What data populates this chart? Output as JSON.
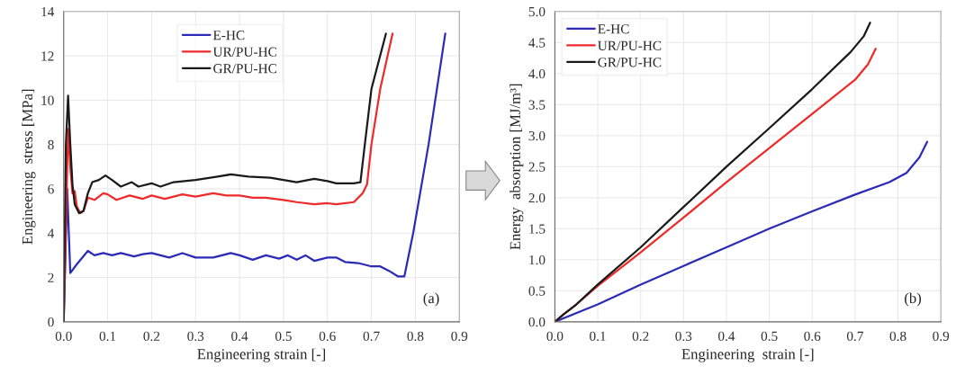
{
  "chart_data": [
    {
      "type": "line",
      "xlabel": "Engineering strain [-]",
      "ylabel": "Engineering  stress [MPa]",
      "xlim": [
        0,
        0.9
      ],
      "ylim": [
        0,
        14
      ],
      "xticks": [
        {
          "value": 0,
          "label": "0.0"
        },
        {
          "value": 0.1,
          "label": "0.1"
        },
        {
          "value": 0.2,
          "label": "0.2"
        },
        {
          "value": 0.3,
          "label": "0.3"
        },
        {
          "value": 0.4,
          "label": "0.4"
        },
        {
          "value": 0.5,
          "label": "0.5"
        },
        {
          "value": 0.6,
          "label": "0.6"
        },
        {
          "value": 0.7,
          "label": "0.7"
        },
        {
          "value": 0.8,
          "label": "0.8"
        },
        {
          "value": 0.9,
          "label": "0.9"
        }
      ],
      "yticks": [
        0,
        2,
        4,
        6,
        8,
        10,
        12,
        14
      ],
      "grid": true,
      "legend": "top",
      "annotations": [
        "(a)"
      ],
      "series": [
        {
          "name": "E-HC",
          "color": "#2b2bb8",
          "x": [
            0,
            0.008,
            0.015,
            0.03,
            0.055,
            0.07,
            0.09,
            0.11,
            0.13,
            0.16,
            0.18,
            0.2,
            0.24,
            0.27,
            0.3,
            0.34,
            0.38,
            0.4,
            0.43,
            0.46,
            0.49,
            0.51,
            0.53,
            0.55,
            0.57,
            0.6,
            0.62,
            0.64,
            0.67,
            0.7,
            0.72,
            0.74,
            0.76,
            0.775,
            0.795,
            0.83,
            0.868
          ],
          "values": [
            0,
            6,
            2.2,
            2.6,
            3.2,
            3.0,
            3.1,
            3.0,
            3.1,
            2.95,
            3.05,
            3.1,
            2.9,
            3.1,
            2.9,
            2.9,
            3.1,
            3.0,
            2.8,
            3.0,
            2.85,
            3.0,
            2.8,
            3.0,
            2.75,
            2.9,
            2.9,
            2.7,
            2.65,
            2.5,
            2.5,
            2.3,
            2.05,
            2.05,
            4,
            8,
            13
          ]
        },
        {
          "name": "UR/PU-HC",
          "color": "#ee2a2a",
          "x": [
            0,
            0.01,
            0.015,
            0.02,
            0.025,
            0.03,
            0.038,
            0.045,
            0.055,
            0.07,
            0.09,
            0.1,
            0.12,
            0.15,
            0.18,
            0.2,
            0.23,
            0.27,
            0.3,
            0.34,
            0.37,
            0.4,
            0.43,
            0.46,
            0.5,
            0.53,
            0.57,
            0.6,
            0.62,
            0.66,
            0.68,
            0.69,
            0.7,
            0.72,
            0.748
          ],
          "values": [
            0,
            8.7,
            7,
            5.8,
            5.9,
            5.2,
            4.9,
            5.0,
            5.6,
            5.5,
            5.8,
            5.75,
            5.5,
            5.7,
            5.55,
            5.7,
            5.55,
            5.75,
            5.65,
            5.8,
            5.7,
            5.7,
            5.6,
            5.6,
            5.5,
            5.4,
            5.3,
            5.35,
            5.3,
            5.4,
            5.8,
            6.2,
            8,
            10.5,
            13
          ]
        },
        {
          "name": "GR/PU-HC",
          "color": "#1a1a1a",
          "x": [
            0,
            0.005,
            0.01,
            0.015,
            0.02,
            0.025,
            0.035,
            0.045,
            0.055,
            0.065,
            0.08,
            0.095,
            0.11,
            0.13,
            0.155,
            0.17,
            0.2,
            0.22,
            0.25,
            0.3,
            0.35,
            0.38,
            0.42,
            0.47,
            0.5,
            0.53,
            0.57,
            0.6,
            0.62,
            0.66,
            0.675,
            0.685,
            0.7,
            0.733
          ],
          "values": [
            0,
            8,
            10.2,
            8,
            6.2,
            5.3,
            4.9,
            5.0,
            5.8,
            6.3,
            6.4,
            6.6,
            6.4,
            6.1,
            6.3,
            6.1,
            6.25,
            6.1,
            6.3,
            6.4,
            6.55,
            6.65,
            6.55,
            6.5,
            6.4,
            6.3,
            6.45,
            6.35,
            6.25,
            6.25,
            6.3,
            8,
            10.5,
            13
          ]
        }
      ]
    },
    {
      "type": "line",
      "xlabel": "Engineering  strain [-]",
      "ylabel": "Energy  absorption [MJ/m³]",
      "xlim": [
        0,
        0.9
      ],
      "ylim": [
        0,
        5
      ],
      "xticks": [
        {
          "value": 0,
          "label": "0.0"
        },
        {
          "value": 0.1,
          "label": "0.1"
        },
        {
          "value": 0.2,
          "label": "0.2"
        },
        {
          "value": 0.3,
          "label": "0.3"
        },
        {
          "value": 0.4,
          "label": "0.4"
        },
        {
          "value": 0.5,
          "label": "0.5"
        },
        {
          "value": 0.6,
          "label": "0.6"
        },
        {
          "value": 0.7,
          "label": "0.7"
        },
        {
          "value": 0.8,
          "label": "0.8"
        },
        {
          "value": 0.9,
          "label": "0.9"
        }
      ],
      "yticks": [
        {
          "value": 0,
          "label": "0.0"
        },
        {
          "value": 0.5,
          "label": "0.5"
        },
        {
          "value": 1,
          "label": "1.0"
        },
        {
          "value": 1.5,
          "label": "1.5"
        },
        {
          "value": 2,
          "label": "2.0"
        },
        {
          "value": 2.5,
          "label": "2.5"
        },
        {
          "value": 3,
          "label": "3.0"
        },
        {
          "value": 3.5,
          "label": "3.5"
        },
        {
          "value": 4,
          "label": "4.0"
        },
        {
          "value": 4.5,
          "label": "4.5"
        },
        {
          "value": 5,
          "label": "5.0"
        }
      ],
      "grid": true,
      "legend": "top left",
      "annotations": [
        "(b)"
      ],
      "series": [
        {
          "name": "E-HC",
          "color": "#2b2bb8",
          "x": [
            0,
            0.1,
            0.2,
            0.3,
            0.4,
            0.5,
            0.6,
            0.7,
            0.78,
            0.82,
            0.85,
            0.868
          ],
          "values": [
            0,
            0.28,
            0.6,
            0.9,
            1.2,
            1.5,
            1.78,
            2.05,
            2.25,
            2.4,
            2.65,
            2.9
          ]
        },
        {
          "name": "UR/PU-HC",
          "color": "#ee2a2a",
          "x": [
            0,
            0.02,
            0.05,
            0.1,
            0.2,
            0.3,
            0.4,
            0.5,
            0.6,
            0.7,
            0.73,
            0.748
          ],
          "values": [
            0,
            0.12,
            0.28,
            0.58,
            1.12,
            1.68,
            2.25,
            2.8,
            3.35,
            3.9,
            4.15,
            4.4
          ]
        },
        {
          "name": "GR/PU-HC",
          "color": "#1a1a1a",
          "x": [
            0,
            0.02,
            0.05,
            0.1,
            0.2,
            0.3,
            0.4,
            0.5,
            0.6,
            0.69,
            0.72,
            0.735
          ],
          "values": [
            0,
            0.12,
            0.28,
            0.6,
            1.2,
            1.85,
            2.5,
            3.12,
            3.75,
            4.35,
            4.6,
            4.82
          ]
        }
      ]
    }
  ]
}
